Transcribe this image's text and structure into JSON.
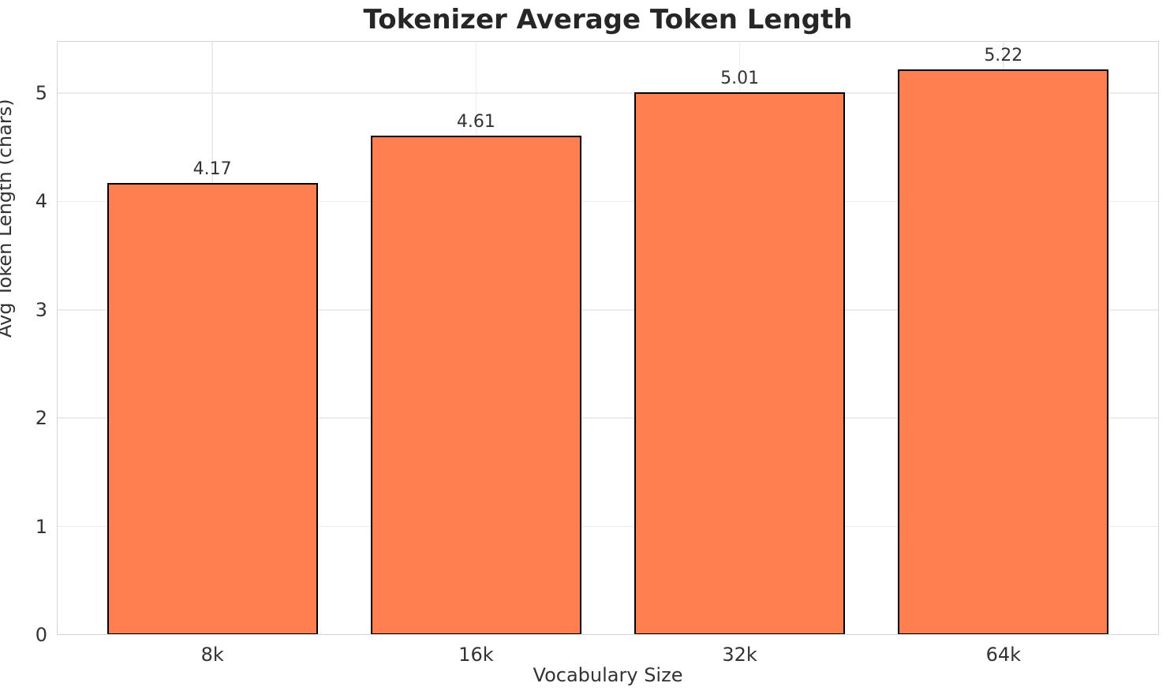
{
  "chart_data": {
    "type": "bar",
    "title": "Tokenizer Average Token Length",
    "xlabel": "Vocabulary Size",
    "ylabel": "Avg Token Length (chars)",
    "categories": [
      "8k",
      "16k",
      "32k",
      "64k"
    ],
    "values": [
      4.17,
      4.61,
      5.01,
      5.22
    ],
    "bar_labels": [
      "4.17",
      "4.61",
      "5.01",
      "5.22"
    ],
    "yticks": [
      0,
      1,
      2,
      3,
      4,
      5
    ],
    "ytick_labels": [
      "0",
      "1",
      "2",
      "3",
      "4",
      "5"
    ],
    "ylim": [
      0,
      5.48
    ],
    "bar_width_fraction": 0.8,
    "grid": true,
    "legend": "none",
    "colors": {
      "bar_fill": "#FF7F50",
      "bar_edge": "#000000",
      "gridline": "#ececec",
      "spine": "#d4d4d4",
      "tick_text": "#333333",
      "title_text": "#262626",
      "background": "#ffffff"
    }
  }
}
